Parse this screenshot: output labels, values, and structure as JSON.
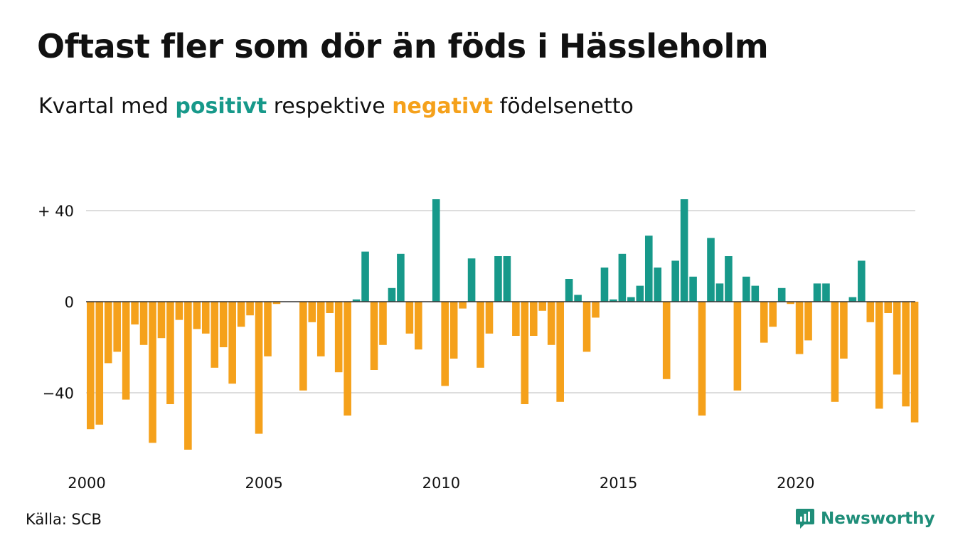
{
  "title": "Oftast fler som dör än föds i Hässleholm",
  "subtitle": {
    "prefix": "Kvartal med ",
    "positive": "positivt",
    "middle": " respektive ",
    "negative": "negativt",
    "suffix": " födelsenetto"
  },
  "source": "Källa: SCB",
  "brand": "Newsworthy",
  "colors": {
    "positive": "#17998a",
    "negative": "#f5a11b",
    "grid": "#dddddd",
    "text": "#111111",
    "brand": "#1f8e79"
  },
  "chart_data": {
    "type": "bar",
    "x_start": "2000 Q1",
    "x_end": "2023 Q2",
    "ylim": [
      -65,
      45
    ],
    "grid": true,
    "y_ticks": [
      {
        "value": 40,
        "label": "+ 40"
      },
      {
        "value": 0,
        "label": "0"
      },
      {
        "value": -40,
        "label": "−40"
      }
    ],
    "x_ticks": [
      {
        "year": 2000,
        "label": "2000"
      },
      {
        "year": 2005,
        "label": "2005"
      },
      {
        "year": 2010,
        "label": "2010"
      },
      {
        "year": 2015,
        "label": "2015"
      },
      {
        "year": 2020,
        "label": "2020"
      }
    ],
    "values": [
      -56,
      -54,
      -27,
      -22,
      -43,
      -10,
      -19,
      -62,
      -16,
      -45,
      -8,
      -65,
      -12,
      -14,
      -29,
      -20,
      -36,
      -11,
      -6,
      -58,
      -24,
      -1,
      0,
      0,
      -39,
      -9,
      -24,
      -5,
      -31,
      -50,
      1,
      22,
      -30,
      -19,
      6,
      21,
      -14,
      -21,
      0,
      45,
      -37,
      -25,
      -3,
      19,
      -29,
      -14,
      20,
      20,
      -15,
      -45,
      -15,
      -4,
      -19,
      -44,
      10,
      3,
      -22,
      -7,
      15,
      1,
      21,
      2,
      7,
      29,
      15,
      -34,
      18,
      45,
      11,
      -50,
      28,
      8,
      20,
      -39,
      11,
      7,
      -18,
      -11,
      6,
      -1,
      -23,
      -17,
      8,
      8,
      -44,
      -25,
      2,
      18,
      -9,
      -47,
      -5,
      -32,
      -46,
      -53
    ]
  }
}
